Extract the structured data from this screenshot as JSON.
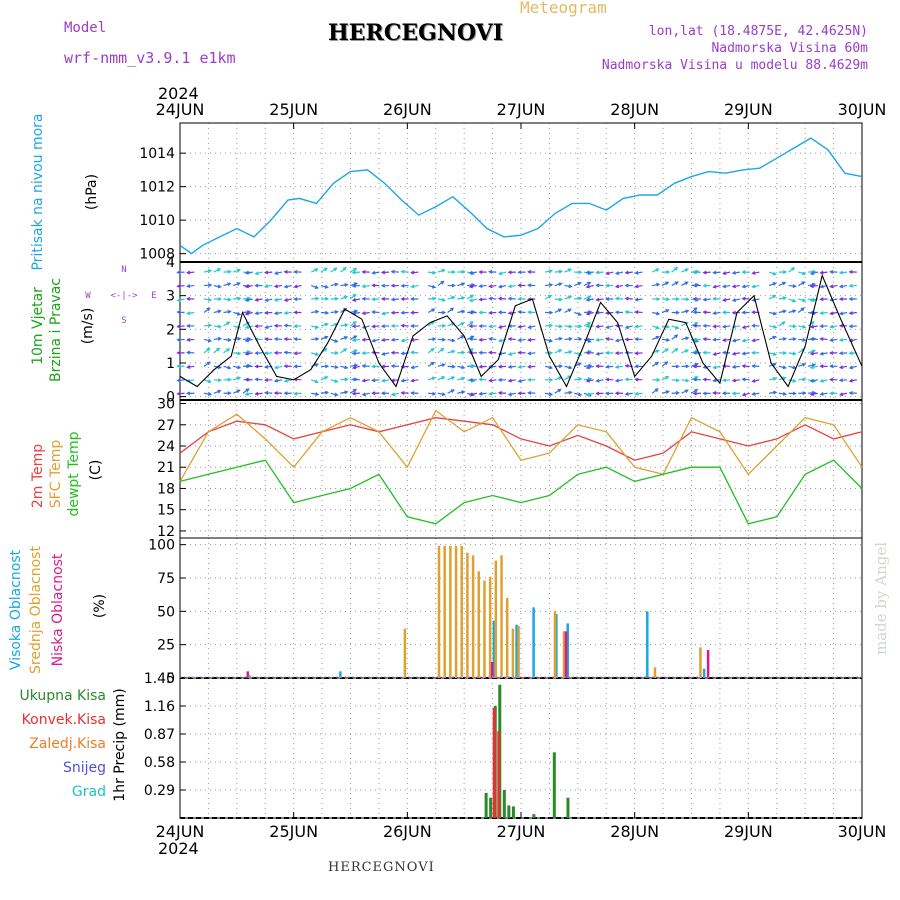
{
  "header": {
    "title": "HERCEGNOVI",
    "subtitle": "Meteogram",
    "model_label": "Model",
    "model_name": "wrf-nmm_v3.9.1  e1km",
    "info_lines": [
      "lon,lat (18.4875E, 42.4625N)",
      "Nadmorska Visina 60m",
      "Nadmorska Visina u modelu 88.4629m"
    ],
    "footer": "HERCEGNOVI",
    "credit": "made by Angel"
  },
  "colors": {
    "pressure": "#1ea6e6",
    "wind": "#19a519",
    "temp2m": "#e84040",
    "sfc": "#e0a030",
    "dewpt": "#20c020",
    "high_cloud": "#17a9e0",
    "mid_cloud": "#e0a030",
    "low_cloud": "#d81b8c",
    "precip_total": "#2a8a2a",
    "precip_conv": "#e83030",
    "precip_frozen": "#f07c28",
    "snow": "#5050e0",
    "hail": "#20c0c0",
    "axis_purple": "#a040d0",
    "arrow_purple": "#7b2fe0",
    "arrow_blue": "#2f6fe8",
    "arrow_cyan": "#22c8d0"
  },
  "time_axis": {
    "year": "2024",
    "labels": [
      "24JUN",
      "25JUN",
      "26JUN",
      "27JUN",
      "28JUN",
      "29JUN",
      "30JUN"
    ],
    "top_year": "2024",
    "bottom_year": "2024"
  },
  "chart_data": [
    {
      "type": "line",
      "name": "pressure",
      "ylabel": [
        "Pritisak na nivou mora",
        "(hPa)"
      ],
      "ylim": [
        1007.5,
        1015.8
      ],
      "yticks": [
        1008,
        1010,
        1012,
        1014
      ],
      "series": [
        {
          "name": "Pritisak na nivou mora",
          "x_days": [
            0,
            0.1,
            0.2,
            0.35,
            0.5,
            0.65,
            0.8,
            0.95,
            1.05,
            1.2,
            1.35,
            1.5,
            1.65,
            1.8,
            1.95,
            2.1,
            2.25,
            2.4,
            2.55,
            2.7,
            2.85,
            3.0,
            3.15,
            3.3,
            3.45,
            3.6,
            3.75,
            3.9,
            4.05,
            4.2,
            4.35,
            4.5,
            4.65,
            4.8,
            4.95,
            5.1,
            5.25,
            5.4,
            5.55,
            5.7,
            5.85,
            6.0
          ],
          "values": [
            1008.5,
            1008.0,
            1008.5,
            1009.0,
            1009.5,
            1009.0,
            1010.0,
            1011.2,
            1011.3,
            1011.0,
            1012.2,
            1012.9,
            1013.0,
            1012.2,
            1011.2,
            1010.3,
            1010.8,
            1011.4,
            1010.5,
            1009.5,
            1009.0,
            1009.1,
            1009.5,
            1010.4,
            1011.0,
            1011.0,
            1010.6,
            1011.3,
            1011.5,
            1011.5,
            1012.2,
            1012.6,
            1012.9,
            1012.8,
            1013.0,
            1013.1,
            1013.7,
            1014.3,
            1014.9,
            1014.2,
            1012.8,
            1012.6
          ]
        }
      ]
    },
    {
      "type": "line",
      "name": "wind",
      "ylabel": [
        "10m Vjetar",
        "Brzina i Pravac",
        "(m/s)"
      ],
      "compass": {
        "n": "N",
        "w": "W",
        "e": "E",
        "s": "S",
        "arrows": "<-|->"
      },
      "ylim": [
        -0.1,
        4.0
      ],
      "yticks": [
        0,
        1,
        2,
        3,
        4
      ],
      "series": [
        {
          "name": "Brzina",
          "x_days": [
            0,
            0.15,
            0.3,
            0.45,
            0.55,
            0.7,
            0.85,
            1.0,
            1.15,
            1.3,
            1.45,
            1.6,
            1.75,
            1.9,
            2.05,
            2.2,
            2.35,
            2.5,
            2.65,
            2.8,
            2.95,
            3.1,
            3.25,
            3.4,
            3.55,
            3.7,
            3.85,
            4.0,
            4.15,
            4.3,
            4.45,
            4.6,
            4.75,
            4.9,
            5.05,
            5.2,
            5.35,
            5.5,
            5.65,
            5.8,
            6.0
          ],
          "values": [
            0.6,
            0.3,
            0.8,
            1.2,
            2.5,
            1.5,
            0.6,
            0.5,
            0.8,
            1.6,
            2.6,
            2.3,
            1.0,
            0.3,
            1.8,
            2.2,
            2.4,
            1.8,
            0.6,
            1.1,
            2.7,
            2.9,
            1.2,
            0.3,
            1.5,
            2.8,
            2.2,
            0.6,
            1.2,
            2.3,
            2.2,
            1.0,
            0.4,
            2.5,
            3.0,
            1.0,
            0.3,
            1.5,
            3.6,
            2.4,
            0.9
          ]
        }
      ]
    },
    {
      "type": "line",
      "name": "temperature",
      "ylabel": [
        "2m Temp",
        "SFC Temp",
        "dewpt Temp",
        "(C)"
      ],
      "ylim": [
        11,
        30.5
      ],
      "yticks": [
        12,
        15,
        18,
        21,
        24,
        27,
        30
      ],
      "series": [
        {
          "name": "2m Temp",
          "x_days": [
            0,
            0.25,
            0.5,
            0.75,
            1.0,
            1.25,
            1.5,
            1.75,
            2.0,
            2.25,
            2.5,
            2.75,
            3.0,
            3.25,
            3.5,
            3.75,
            4.0,
            4.25,
            4.5,
            4.75,
            5.0,
            5.25,
            5.5,
            5.75,
            6.0
          ],
          "values": [
            23,
            26,
            27.5,
            27,
            25,
            26,
            27,
            26,
            27,
            28,
            27.5,
            27,
            25,
            24,
            25.5,
            24,
            22,
            23,
            26,
            25,
            24,
            25,
            27,
            25,
            26
          ]
        },
        {
          "name": "SFC Temp",
          "x_days": [
            0,
            0.25,
            0.5,
            0.75,
            1.0,
            1.25,
            1.5,
            1.75,
            2.0,
            2.25,
            2.5,
            2.75,
            3.0,
            3.25,
            3.5,
            3.75,
            4.0,
            4.25,
            4.5,
            4.75,
            5.0,
            5.25,
            5.5,
            5.75,
            6.0
          ],
          "values": [
            19,
            26,
            28.5,
            25,
            21,
            26,
            28,
            26,
            21,
            29,
            26,
            28,
            22,
            23,
            27,
            26,
            21,
            20,
            28,
            26,
            20,
            24,
            28,
            27,
            21
          ]
        },
        {
          "name": "dewpt Temp",
          "x_days": [
            0,
            0.25,
            0.5,
            0.75,
            1.0,
            1.25,
            1.5,
            1.75,
            2.0,
            2.25,
            2.5,
            2.75,
            3.0,
            3.25,
            3.5,
            3.75,
            4.0,
            4.25,
            4.5,
            4.75,
            5.0,
            5.25,
            5.5,
            5.75,
            6.0
          ],
          "values": [
            19,
            20,
            21,
            22,
            16,
            17,
            18,
            20,
            14,
            13,
            16,
            17,
            16,
            17,
            20,
            21,
            19,
            20,
            21,
            21,
            13,
            14,
            20,
            22,
            18
          ]
        }
      ]
    },
    {
      "type": "bar",
      "name": "cloud",
      "ylabel": [
        "Visoka Oblacnost",
        "Srednja Oblacnost",
        "Niska Oblacnost",
        "(%)"
      ],
      "ylim": [
        0,
        105
      ],
      "yticks": [
        0,
        25,
        50,
        75,
        100
      ],
      "series": [
        {
          "name": "Visoka Oblacnost",
          "x_days": [
            0.1,
            0.6,
            1.4,
            2.75,
            2.95,
            3.1,
            3.3,
            3.4,
            4.1,
            4.6
          ],
          "values": [
            1,
            2,
            5,
            43,
            40,
            53,
            48,
            41,
            50,
            7
          ]
        },
        {
          "name": "Srednja Oblacnost",
          "x_days": [
            1.95,
            2.25,
            2.3,
            2.35,
            2.4,
            2.45,
            2.5,
            2.55,
            2.6,
            2.65,
            2.7,
            2.75,
            2.8,
            2.85,
            2.9,
            2.95,
            3.27,
            3.35,
            4.15,
            4.55
          ],
          "values": [
            37,
            99,
            99,
            99,
            99,
            99,
            94,
            92,
            80,
            73,
            76,
            88,
            92,
            60,
            37,
            39,
            50,
            35,
            8,
            23
          ]
        },
        {
          "name": "Niska Oblacnost",
          "x_days": [
            0.55,
            2.7,
            3.35,
            4.6
          ],
          "values": [
            5,
            12,
            35,
            21
          ]
        }
      ]
    },
    {
      "type": "bar",
      "name": "precip",
      "ylabel": [
        "1hr Precip (mm)"
      ],
      "legend": [
        "Ukupna Kisa",
        "Konvek.Kisa",
        "Zaledj.Kisa",
        "Snijeg",
        "Grad"
      ],
      "ylim": [
        0,
        1.45
      ],
      "yticks": [
        0.29,
        0.58,
        0.87,
        1.16,
        1.45
      ],
      "yticklabels": [
        "0.29",
        "0.58",
        "0.87",
        "1.16",
        "1.45"
      ],
      "series": [
        {
          "name": "Ukupna Kisa",
          "x_days": [
            2.68,
            2.72,
            2.76,
            2.8,
            2.84,
            2.88,
            2.92,
            3.1,
            3.28,
            3.4
          ],
          "values": [
            0.26,
            0.21,
            1.16,
            1.38,
            0.29,
            0.13,
            0.12,
            0.04,
            0.68,
            0.21
          ]
        },
        {
          "name": "Konvek.Kisa",
          "x_days": [
            2.76,
            2.8
          ],
          "values": [
            1.14,
            0.9
          ]
        }
      ]
    }
  ]
}
